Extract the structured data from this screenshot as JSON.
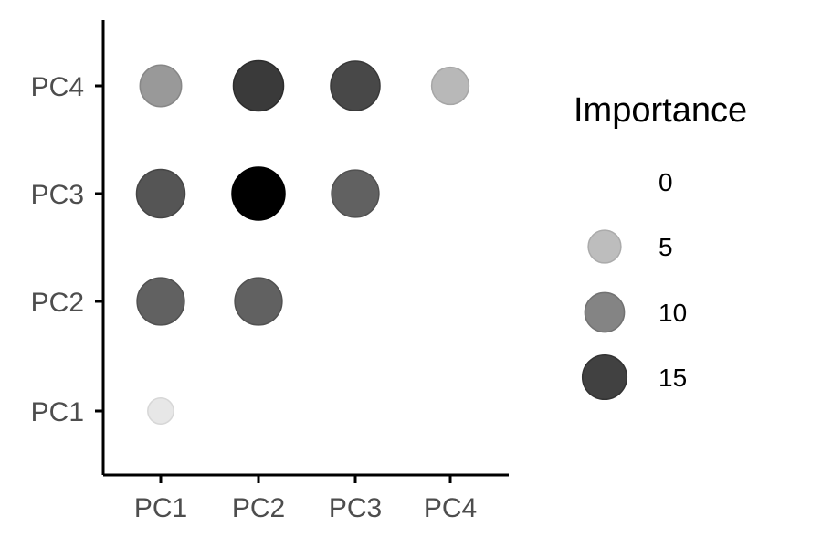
{
  "chart_data": {
    "type": "scatter",
    "title": "",
    "xlabel": "",
    "ylabel": "",
    "x_categories": [
      "PC1",
      "PC2",
      "PC3",
      "PC4"
    ],
    "y_categories": [
      "PC1",
      "PC2",
      "PC3",
      "PC4"
    ],
    "points": [
      {
        "x": "PC1",
        "y": "PC1",
        "importance": 1
      },
      {
        "x": "PC1",
        "y": "PC2",
        "importance": 14
      },
      {
        "x": "PC2",
        "y": "PC2",
        "importance": 14
      },
      {
        "x": "PC1",
        "y": "PC3",
        "importance": 15
      },
      {
        "x": "PC2",
        "y": "PC3",
        "importance": 20
      },
      {
        "x": "PC3",
        "y": "PC3",
        "importance": 14
      },
      {
        "x": "PC1",
        "y": "PC4",
        "importance": 9
      },
      {
        "x": "PC2",
        "y": "PC4",
        "importance": 17
      },
      {
        "x": "PC3",
        "y": "PC4",
        "importance": 16
      },
      {
        "x": "PC4",
        "y": "PC4",
        "importance": 6
      }
    ],
    "importance_range": [
      0,
      20
    ],
    "legend": {
      "title": "Importance",
      "position": "right",
      "entries": [
        {
          "label": "0",
          "value": 0
        },
        {
          "label": "5",
          "value": 5
        },
        {
          "label": "10",
          "value": 10
        },
        {
          "label": "15",
          "value": 15
        }
      ]
    },
    "grid": false
  }
}
